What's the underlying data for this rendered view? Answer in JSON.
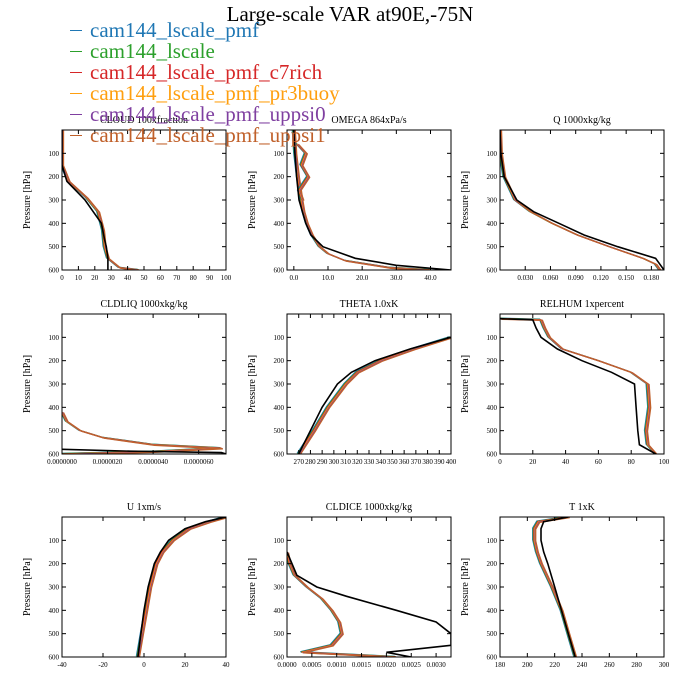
{
  "figure_title": "Large-scale VAR at90E,-75N",
  "chart_data": [
    {
      "type": "line",
      "title": "CLOUD 100xfraction",
      "ylabel": "Pressure [hPa]",
      "xlim": [
        0,
        100
      ],
      "ylim": [
        600,
        0
      ],
      "xticks": [
        "0",
        "10",
        "20",
        "30",
        "40",
        "50",
        "60",
        "70",
        "80",
        "90",
        "100"
      ],
      "xtick_values": [
        0,
        10,
        20,
        30,
        40,
        50,
        60,
        70,
        80,
        90,
        100
      ],
      "yticks": [
        "100",
        "200",
        "300",
        "400",
        "500",
        "600"
      ],
      "ytick_values": [
        100,
        200,
        300,
        400,
        500,
        600
      ],
      "series": [
        {
          "p": [
            0,
            150,
            220,
            300,
            400,
            470,
            500,
            550,
            590,
            600
          ],
          "x": [
            0,
            0,
            3,
            14,
            24,
            26,
            27,
            28,
            28,
            28
          ]
        },
        {
          "p": [
            0,
            150,
            220,
            290,
            350,
            430,
            500,
            550,
            590,
            600
          ],
          "x": [
            0,
            0,
            4,
            15,
            22,
            25,
            26,
            28,
            35,
            47
          ]
        }
      ]
    },
    {
      "type": "line",
      "title": "OMEGA 864xPa/s",
      "ylabel": "Pressure [hPa]",
      "xlim": [
        -2,
        46
      ],
      "ylim": [
        600,
        0
      ],
      "xticks": [
        "0.0",
        "10.0",
        "20.0",
        "30.0",
        "40.0"
      ],
      "xtick_values": [
        0,
        10,
        20,
        30,
        40
      ],
      "yticks": [
        "100",
        "200",
        "300",
        "400",
        "500",
        "600"
      ],
      "ytick_values": [
        100,
        200,
        300,
        400,
        500,
        600
      ],
      "series": [
        {
          "p": [
            0,
            100,
            200,
            300,
            350,
            400,
            450,
            500,
            550,
            580,
            600
          ],
          "x": [
            0,
            0.3,
            0.8,
            1.5,
            2.5,
            3.5,
            5,
            8.5,
            18,
            30,
            46
          ]
        },
        {
          "p": [
            0,
            100,
            200,
            300,
            350,
            400,
            450,
            500,
            530,
            560,
            590,
            600
          ],
          "x": [
            0,
            0.4,
            1.2,
            2.2,
            2.8,
            3.8,
            5.3,
            7.5,
            10,
            15,
            28,
            40
          ]
        },
        {
          "p": [
            60,
            100,
            150,
            200,
            260,
            300
          ],
          "x": [
            1,
            3.5,
            2.2,
            4.2,
            1.5,
            2.5
          ]
        }
      ]
    },
    {
      "type": "line",
      "title": "Q 1000xkg/kg",
      "ylabel": "Pressure [hPa]",
      "xlim": [
        0,
        0.195
      ],
      "ylim": [
        600,
        0
      ],
      "xticks": [
        "0.030",
        "0.060",
        "0.090",
        "0.120",
        "0.150",
        "0.180"
      ],
      "xtick_values": [
        0.03,
        0.06,
        0.09,
        0.12,
        0.15,
        0.18
      ],
      "yticks": [
        "100",
        "200",
        "300",
        "400",
        "500",
        "600"
      ],
      "ytick_values": [
        100,
        200,
        300,
        400,
        500,
        600
      ],
      "series": [
        {
          "p": [
            0,
            100,
            200,
            300,
            350,
            400,
            450,
            500,
            550,
            600
          ],
          "x": [
            0,
            0.001,
            0.005,
            0.02,
            0.04,
            0.07,
            0.1,
            0.14,
            0.185,
            0.195
          ]
        },
        {
          "p": [
            0,
            100,
            200,
            300,
            350,
            400,
            450,
            500,
            550,
            575,
            600
          ],
          "x": [
            0,
            0.001,
            0.005,
            0.018,
            0.036,
            0.062,
            0.092,
            0.13,
            0.17,
            0.185,
            0.19
          ]
        }
      ]
    },
    {
      "type": "line",
      "title": "CLDLIQ 1000xkg/kg",
      "ylabel": "Pressure [hPa]",
      "xlim": [
        0,
        7.2e-06
      ],
      "ylim": [
        600,
        0
      ],
      "xticks": [
        "0.0000000",
        "0.0000020",
        "0.0000040",
        "0.0000060"
      ],
      "xtick_values": [
        0,
        2e-06,
        4e-06,
        6e-06
      ],
      "yticks": [
        "100",
        "200",
        "300",
        "400",
        "500",
        "600"
      ],
      "ytick_values": [
        100,
        200,
        300,
        400,
        500,
        600
      ],
      "series": [
        {
          "p": [
            580,
            588,
            594,
            600
          ],
          "x": [
            0,
            3e-06,
            7e-06,
            7.2e-06
          ]
        },
        {
          "p": [
            420,
            460,
            500,
            530,
            560,
            575,
            590,
            600
          ],
          "x": [
            0,
            2e-07,
            8e-07,
            1.8e-06,
            4e-06,
            7e-06,
            4e-06,
            0
          ]
        }
      ]
    },
    {
      "type": "line",
      "title": "THETA 1.0xK",
      "ylabel": "Pressure [hPa]",
      "xlim": [
        260,
        400
      ],
      "ylim": [
        600,
        0
      ],
      "xticks": [
        "270",
        "280",
        "290",
        "300",
        "310",
        "320",
        "330",
        "340",
        "350",
        "360",
        "370",
        "380",
        "390",
        "400"
      ],
      "xtick_values": [
        270,
        280,
        290,
        300,
        310,
        320,
        330,
        340,
        350,
        360,
        370,
        380,
        390,
        400
      ],
      "yticks": [
        "100",
        "200",
        "300",
        "400",
        "500",
        "600"
      ],
      "ytick_values": [
        100,
        200,
        300,
        400,
        500,
        600
      ],
      "series": [
        {
          "p": [
            100,
            150,
            200,
            250,
            300,
            400,
            500,
            600
          ],
          "x": [
            400,
            365,
            335,
            315,
            303,
            290,
            280,
            270
          ]
        },
        {
          "p": [
            100,
            150,
            200,
            250,
            300,
            400,
            500,
            600
          ],
          "x": [
            400,
            368,
            340,
            320,
            310,
            295,
            283,
            270
          ]
        }
      ]
    },
    {
      "type": "line",
      "title": "RELHUM 1xpercent",
      "ylabel": "Pressure [hPa]",
      "xlim": [
        0,
        100
      ],
      "ylim": [
        600,
        0
      ],
      "xticks": [
        "0",
        "20",
        "40",
        "60",
        "80",
        "100"
      ],
      "xtick_values": [
        0,
        20,
        40,
        60,
        80,
        100
      ],
      "yticks": [
        "100",
        "200",
        "300",
        "400",
        "500",
        "600"
      ],
      "ytick_values": [
        100,
        200,
        300,
        400,
        500,
        600
      ],
      "series": [
        {
          "p": [
            20,
            25,
            60,
            100,
            150,
            200,
            250,
            300,
            400,
            500,
            560,
            600
          ],
          "x": [
            0,
            20,
            22,
            25,
            35,
            50,
            68,
            82,
            83,
            84,
            85,
            95
          ]
        },
        {
          "p": [
            20,
            25,
            60,
            100,
            150,
            200,
            250,
            300,
            400,
            500,
            560,
            600
          ],
          "x": [
            0,
            25,
            27,
            30,
            38,
            60,
            80,
            90,
            91,
            89,
            90,
            95
          ]
        }
      ]
    },
    {
      "type": "line",
      "title": "U 1xm/s",
      "ylabel": "Pressure [hPa]",
      "xlim": [
        -40,
        40
      ],
      "ylim": [
        600,
        0
      ],
      "xticks": [
        "-40",
        "-20",
        "0",
        "20",
        "40"
      ],
      "xtick_values": [
        -40,
        -20,
        0,
        20,
        40
      ],
      "yticks": [
        "100",
        "200",
        "300",
        "400",
        "500",
        "600"
      ],
      "ytick_values": [
        100,
        200,
        300,
        400,
        500,
        600
      ],
      "series": [
        {
          "p": [
            0,
            20,
            50,
            100,
            150,
            200,
            300,
            400,
            500,
            600
          ],
          "x": [
            40,
            30,
            20,
            12,
            8,
            5,
            2,
            0,
            -1.5,
            -3
          ]
        },
        {
          "p": [
            0,
            20,
            50,
            100,
            150,
            200,
            300,
            400,
            500,
            600
          ],
          "x": [
            40,
            32,
            22,
            14,
            9,
            6,
            3,
            1,
            -1,
            -3
          ]
        }
      ]
    },
    {
      "type": "line",
      "title": "CLDICE 1000xkg/kg",
      "ylabel": "Pressure [hPa]",
      "xlim": [
        0,
        0.0033
      ],
      "ylim": [
        600,
        0
      ],
      "xticks": [
        "0.0000",
        "0.0005",
        "0.0010",
        "0.0015",
        "0.0020",
        "0.0025",
        "0.0030"
      ],
      "xtick_values": [
        0,
        0.0005,
        0.001,
        0.0015,
        0.002,
        0.0025,
        0.003
      ],
      "yticks": [
        "100",
        "200",
        "300",
        "400",
        "500",
        "600"
      ],
      "ytick_values": [
        100,
        200,
        300,
        400,
        500,
        600
      ],
      "series": [
        {
          "p": [
            150,
            200,
            250,
            300,
            340,
            400,
            450,
            500,
            550,
            580,
            600
          ],
          "x": [
            0,
            0.0001,
            0.0002,
            0.0006,
            0.0012,
            0.0022,
            0.003,
            0.0033,
            0.0033,
            0.002,
            0.0025
          ]
        },
        {
          "p": [
            150,
            200,
            250,
            300,
            350,
            400,
            450,
            500,
            550,
            580,
            600
          ],
          "x": [
            0,
            5e-05,
            0.00015,
            0.0004,
            0.0007,
            0.0009,
            0.00105,
            0.0011,
            0.0009,
            0.0003,
            0.0022
          ]
        }
      ]
    },
    {
      "type": "line",
      "title": "T 1xK",
      "ylabel": "Pressure [hPa]",
      "xlim": [
        180,
        300
      ],
      "ylim": [
        600,
        0
      ],
      "xticks": [
        "180",
        "200",
        "220",
        "240",
        "260",
        "280",
        "300"
      ],
      "xtick_values": [
        180,
        200,
        220,
        240,
        260,
        280,
        300
      ],
      "yticks": [
        "100",
        "200",
        "300",
        "400",
        "500",
        "600"
      ],
      "ytick_values": [
        100,
        200,
        300,
        400,
        500,
        600
      ],
      "series": [
        {
          "p": [
            0,
            20,
            50,
            100,
            150,
            200,
            300,
            400,
            500,
            600
          ],
          "x": [
            230,
            212,
            210,
            210,
            212,
            215,
            220,
            225,
            230,
            235
          ]
        },
        {
          "p": [
            0,
            20,
            50,
            100,
            150,
            200,
            300,
            400,
            500,
            600
          ],
          "x": [
            230,
            208,
            205,
            205,
            207,
            210,
            218,
            225,
            230,
            235
          ]
        }
      ]
    }
  ],
  "legend": [
    {
      "label": "cam144_lscale_pmf",
      "color": "#1f77b4"
    },
    {
      "label": "cam144_lscale",
      "color": "#2ca02c"
    },
    {
      "label": "cam144_lscale_pmf_c7rich",
      "color": "#d62728"
    },
    {
      "label": "cam144_lscale_pmf_pr3buoy",
      "color": "#ff9f0f"
    },
    {
      "label": "cam144_lscale_pmf_uppsi0",
      "color": "#7f3fa0"
    },
    {
      "label": "cam144_lscale_pmf_uppsi1",
      "color": "#c0602a"
    }
  ]
}
